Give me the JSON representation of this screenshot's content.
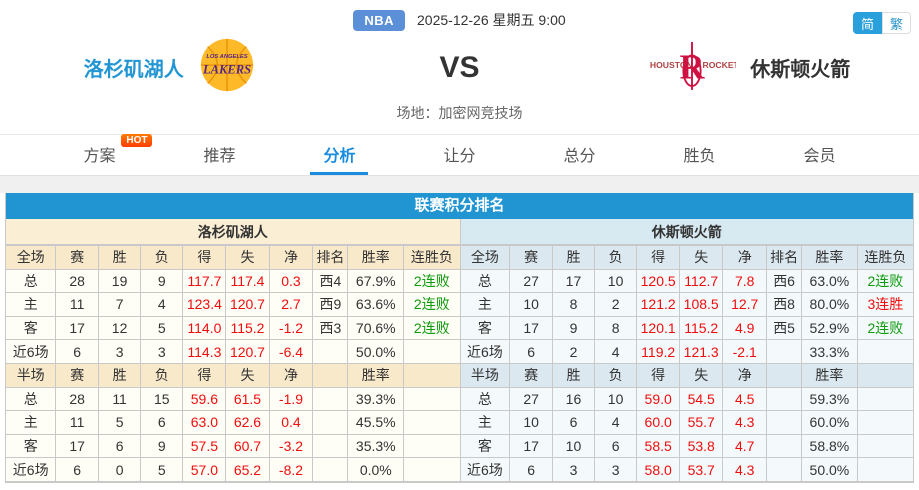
{
  "page": {
    "league_badge": "NBA",
    "datetime": "2025-12-26 星期五 9:00",
    "lang_simplified": "简",
    "lang_traditional": "繁",
    "vs_label": "VS",
    "venue": "场地：加密网竞技场"
  },
  "teams": {
    "home": {
      "name": "洛杉矶湖人",
      "logo": "lakers"
    },
    "away": {
      "name": "休斯顿火箭",
      "logo": "rockets"
    }
  },
  "tabs": [
    {
      "label": "方案",
      "badge": "HOT",
      "active": false
    },
    {
      "label": "推荐",
      "active": false
    },
    {
      "label": "分析",
      "active": true
    },
    {
      "label": "让分",
      "active": false
    },
    {
      "label": "总分",
      "active": false
    },
    {
      "label": "胜负",
      "active": false
    },
    {
      "label": "会员",
      "active": false
    }
  ],
  "standings": {
    "title": "联赛积分排名",
    "full_columns": [
      "全场",
      "赛",
      "胜",
      "负",
      "得",
      "失",
      "净",
      "排名",
      "胜率",
      "连胜负"
    ],
    "half_columns": [
      "半场",
      "赛",
      "胜",
      "负",
      "得",
      "失",
      "净",
      "",
      "胜率",
      ""
    ],
    "left": {
      "team": "洛杉矶湖人",
      "full_rows": [
        [
          "总",
          "28",
          "19",
          "9",
          "117.7",
          "117.4",
          "0.3",
          "西4",
          "67.9%",
          "2连败"
        ],
        [
          "主",
          "11",
          "7",
          "4",
          "123.4",
          "120.7",
          "2.7",
          "西9",
          "63.6%",
          "2连败"
        ],
        [
          "客",
          "17",
          "12",
          "5",
          "114.0",
          "115.2",
          "-1.2",
          "西3",
          "70.6%",
          "2连败"
        ],
        [
          "近6场",
          "6",
          "3",
          "3",
          "114.3",
          "120.7",
          "-6.4",
          "",
          "50.0%",
          ""
        ]
      ],
      "half_rows": [
        [
          "总",
          "28",
          "11",
          "15",
          "59.6",
          "61.5",
          "-1.9",
          "",
          "39.3%",
          ""
        ],
        [
          "主",
          "11",
          "5",
          "6",
          "63.0",
          "62.6",
          "0.4",
          "",
          "45.5%",
          ""
        ],
        [
          "客",
          "17",
          "6",
          "9",
          "57.5",
          "60.7",
          "-3.2",
          "",
          "35.3%",
          ""
        ],
        [
          "近6场",
          "6",
          "0",
          "5",
          "57.0",
          "65.2",
          "-8.2",
          "",
          "0.0%",
          ""
        ]
      ]
    },
    "right": {
      "team": "休斯顿火箭",
      "full_rows": [
        [
          "总",
          "27",
          "17",
          "10",
          "120.5",
          "112.7",
          "7.8",
          "西6",
          "63.0%",
          "2连败"
        ],
        [
          "主",
          "10",
          "8",
          "2",
          "121.2",
          "108.5",
          "12.7",
          "西8",
          "80.0%",
          "3连胜"
        ],
        [
          "客",
          "17",
          "9",
          "8",
          "120.1",
          "115.2",
          "4.9",
          "西5",
          "52.9%",
          "2连败"
        ],
        [
          "近6场",
          "6",
          "2",
          "4",
          "119.2",
          "121.3",
          "-2.1",
          "",
          "33.3%",
          ""
        ]
      ],
      "half_rows": [
        [
          "总",
          "27",
          "16",
          "10",
          "59.0",
          "54.5",
          "4.5",
          "",
          "59.3%",
          ""
        ],
        [
          "主",
          "10",
          "6",
          "4",
          "60.0",
          "55.7",
          "4.3",
          "",
          "60.0%",
          ""
        ],
        [
          "客",
          "17",
          "10",
          "6",
          "58.5",
          "53.8",
          "4.7",
          "",
          "58.8%",
          ""
        ],
        [
          "近6场",
          "6",
          "3",
          "3",
          "58.0",
          "53.7",
          "4.3",
          "",
          "50.0%",
          ""
        ]
      ]
    }
  },
  "colors": {
    "accent_blue": "#2095d2",
    "tab_active_blue": "#1a8ce0",
    "nba_badge_blue": "#5b8fd8",
    "stat_red": "#f20d0d",
    "streak_green": "#0b9b0b",
    "left_header_bg": "#f9e9cb",
    "right_header_bg": "#dce8ef",
    "lakers_gold": "#fdb927",
    "lakers_purple": "#552583",
    "rockets_red": "#ce1141"
  }
}
